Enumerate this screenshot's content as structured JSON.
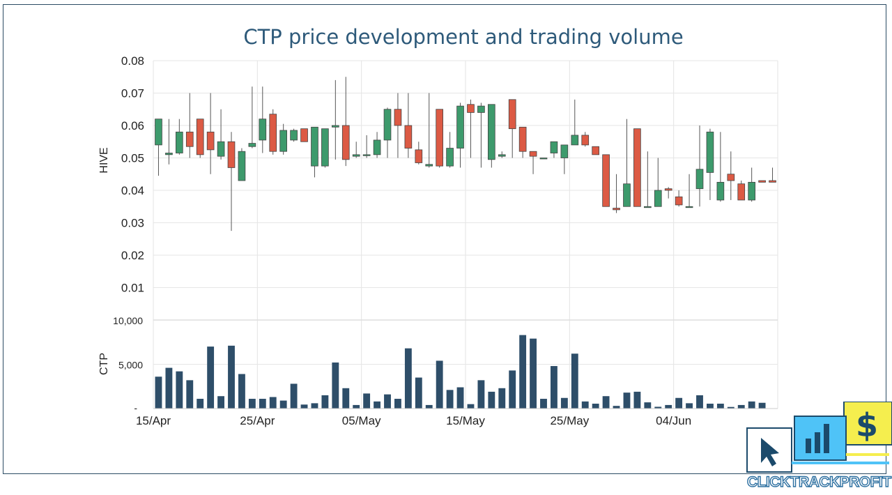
{
  "title": "CTP price development and trading volume",
  "brand": {
    "text": "CLICKTRACKPROFIT",
    "colors": {
      "blue": "#4fc3f7",
      "yellow": "#f5ee4e",
      "navy": "#1b4a6b"
    }
  },
  "chart_data": [
    {
      "type": "candlestick",
      "ylabel": "HIVE",
      "ylim": [
        0,
        0.08
      ],
      "yticks": [
        "0.01",
        "0.02",
        "0.03",
        "0.04",
        "0.05",
        "0.06",
        "0.07",
        "0.08"
      ],
      "colors": {
        "up": "#3d9a6c",
        "down": "#dc5a44"
      },
      "x": [
        "15/Apr",
        "16/Apr",
        "17/Apr",
        "18/Apr",
        "19/Apr",
        "20/Apr",
        "21/Apr",
        "22/Apr",
        "23/Apr",
        "24/Apr",
        "25/Apr",
        "26/Apr",
        "27/Apr",
        "28/Apr",
        "29/Apr",
        "30/Apr",
        "01/May",
        "02/May",
        "03/May",
        "04/May",
        "05/May",
        "06/May",
        "07/May",
        "08/May",
        "09/May",
        "10/May",
        "11/May",
        "12/May",
        "13/May",
        "14/May",
        "15/May",
        "16/May",
        "17/May",
        "18/May",
        "19/May",
        "20/May",
        "21/May",
        "22/May",
        "23/May",
        "24/May",
        "25/May",
        "26/May",
        "27/May",
        "28/May",
        "29/May",
        "30/May",
        "31/May",
        "01/Jun",
        "02/Jun",
        "03/Jun",
        "04/Jun",
        "05/Jun",
        "06/Jun",
        "07/Jun",
        "08/Jun",
        "09/Jun",
        "10/Jun",
        "11/Jun",
        "12/Jun",
        "13/Jun"
      ],
      "open": [
        0.054,
        0.051,
        0.0515,
        0.058,
        0.062,
        0.058,
        0.0505,
        0.055,
        0.043,
        0.0535,
        0.0555,
        0.0635,
        0.052,
        0.0555,
        0.059,
        0.0475,
        0.0475,
        0.0595,
        0.06,
        0.0505,
        0.051,
        0.051,
        0.0555,
        0.065,
        0.06,
        0.0525,
        0.0475,
        0.065,
        0.0475,
        0.053,
        0.0665,
        0.064,
        0.0495,
        0.0505,
        0.068,
        0.0595,
        0.052,
        0.05,
        0.0515,
        0.05,
        0.054,
        0.057,
        0.0535,
        0.051,
        0.0345,
        0.035,
        0.059,
        0.035,
        0.035,
        0.0405,
        0.038,
        0.035,
        0.0405,
        0.0455,
        0.037,
        0.045,
        0.042,
        0.037,
        0.043,
        0.043
      ],
      "close": [
        0.062,
        0.0515,
        0.058,
        0.0535,
        0.051,
        0.0525,
        0.055,
        0.047,
        0.052,
        0.0545,
        0.062,
        0.052,
        0.0585,
        0.0585,
        0.055,
        0.0595,
        0.059,
        0.06,
        0.0495,
        0.051,
        0.051,
        0.0555,
        0.065,
        0.06,
        0.053,
        0.0485,
        0.048,
        0.0475,
        0.053,
        0.066,
        0.064,
        0.066,
        0.0665,
        0.051,
        0.059,
        0.052,
        0.0505,
        0.05,
        0.055,
        0.054,
        0.057,
        0.054,
        0.051,
        0.035,
        0.034,
        0.042,
        0.035,
        0.035,
        0.04,
        0.04,
        0.0355,
        0.035,
        0.0465,
        0.058,
        0.0425,
        0.043,
        0.037,
        0.0425,
        0.0425,
        0.0425
      ],
      "high": [
        0.062,
        0.062,
        0.062,
        0.07,
        0.062,
        0.07,
        0.065,
        0.058,
        0.053,
        0.072,
        0.072,
        0.065,
        0.0605,
        0.059,
        0.059,
        0.059,
        0.059,
        0.074,
        0.075,
        0.055,
        0.057,
        0.058,
        0.0655,
        0.07,
        0.07,
        0.055,
        0.07,
        0.065,
        0.058,
        0.067,
        0.068,
        0.067,
        0.0665,
        0.052,
        0.068,
        0.0595,
        0.052,
        0.05,
        0.055,
        0.054,
        0.068,
        0.058,
        0.0535,
        0.051,
        0.045,
        0.062,
        0.059,
        0.052,
        0.05,
        0.041,
        0.04,
        0.045,
        0.06,
        0.059,
        0.058,
        0.052,
        0.043,
        0.047,
        0.043,
        0.047
      ],
      "low": [
        0.0445,
        0.048,
        0.051,
        0.05,
        0.05,
        0.045,
        0.0495,
        0.0275,
        0.043,
        0.053,
        0.0515,
        0.051,
        0.051,
        0.055,
        0.055,
        0.044,
        0.047,
        0.0495,
        0.0475,
        0.05,
        0.05,
        0.05,
        0.05,
        0.05,
        0.05,
        0.048,
        0.047,
        0.047,
        0.047,
        0.047,
        0.05,
        0.047,
        0.047,
        0.05,
        0.05,
        0.05,
        0.045,
        0.05,
        0.05,
        0.045,
        0.054,
        0.0535,
        0.051,
        0.035,
        0.033,
        0.035,
        0.035,
        0.035,
        0.035,
        0.0375,
        0.035,
        0.035,
        0.035,
        0.037,
        0.0365,
        0.037,
        0.037,
        0.0365,
        0.043,
        0.043
      ]
    },
    {
      "type": "bar",
      "ylabel": "CTP",
      "ylim": [
        0,
        10000
      ],
      "yticks": [
        "-",
        "5,000",
        "10,000"
      ],
      "color": "#2e4e69",
      "xticks": [
        "15/Apr",
        "25/Apr",
        "05/May",
        "15/May",
        "25/May",
        "04/Jun"
      ],
      "values": [
        3600,
        4600,
        4200,
        3200,
        1100,
        7000,
        1400,
        7100,
        3900,
        1100,
        1100,
        1300,
        900,
        2800,
        450,
        600,
        1500,
        5200,
        2300,
        400,
        1700,
        800,
        1600,
        1100,
        6800,
        3500,
        400,
        5400,
        2100,
        2400,
        500,
        3200,
        1900,
        2300,
        4300,
        8300,
        7900,
        1100,
        4800,
        1200,
        6200,
        800,
        550,
        1400,
        300,
        1800,
        1900,
        700,
        200,
        400,
        1200,
        600,
        1500,
        550,
        550,
        180,
        400,
        800,
        650,
        0
      ]
    }
  ]
}
